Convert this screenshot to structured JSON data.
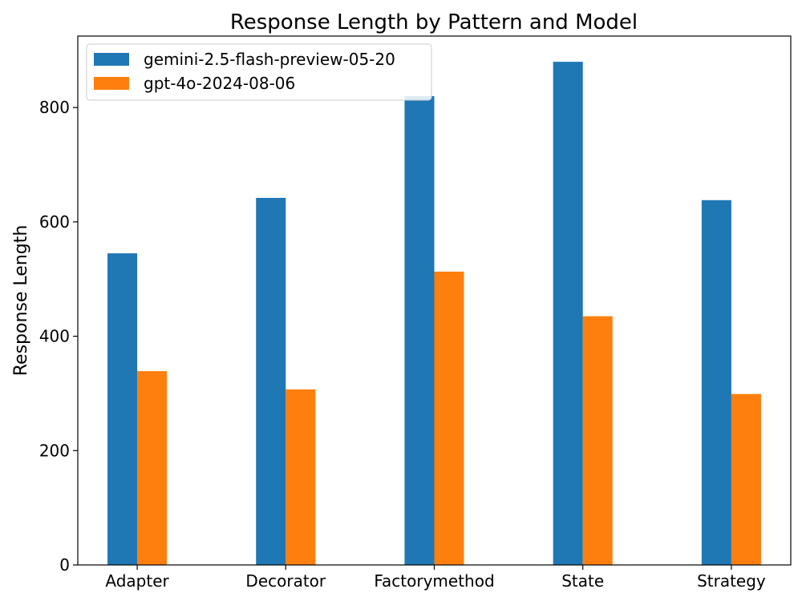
{
  "chart_data": {
    "type": "bar",
    "title": "Response Length by Pattern and Model",
    "xlabel": "",
    "ylabel": "Response Length",
    "categories": [
      "Adapter",
      "Decorator",
      "Factorymethod",
      "State",
      "Strategy"
    ],
    "series": [
      {
        "name": "gemini-2.5-flash-preview-05-20",
        "color": "#1f77b4",
        "values": [
          545,
          642,
          820,
          880,
          638
        ]
      },
      {
        "name": "gpt-4o-2024-08-06",
        "color": "#ff7f0e",
        "values": [
          339,
          307,
          513,
          435,
          299
        ]
      }
    ],
    "ylim": [
      0,
      925
    ],
    "yticks": [
      0,
      200,
      400,
      600,
      800
    ],
    "ytick_labels": [
      "0",
      "200",
      "400",
      "600",
      "800"
    ],
    "grid": false,
    "legend": "top-left"
  }
}
